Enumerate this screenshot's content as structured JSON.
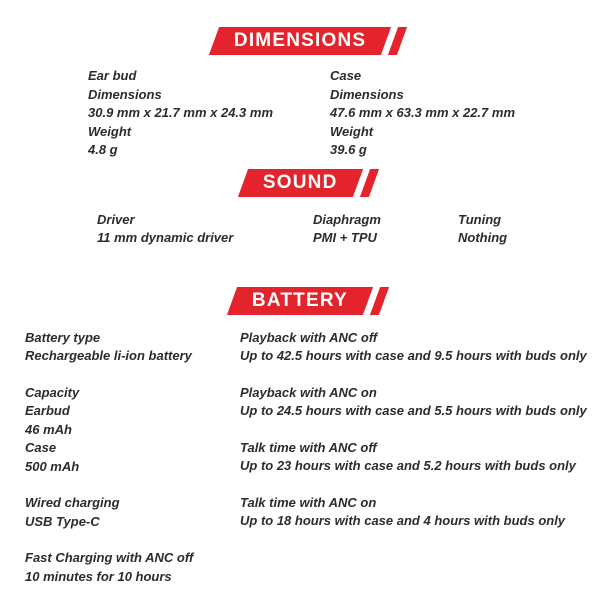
{
  "theme": {
    "accent_red": "#e3242c",
    "body_text_color": "#2d2c2b",
    "banner_text_color": "#ffffff",
    "background": "#ffffff"
  },
  "dimensions": {
    "title": "DIMENSIONS",
    "earbud": {
      "lines": [
        "Ear bud",
        "Dimensions",
        "30.9 mm x 21.7 mm x 24.3 mm",
        "Weight",
        "4.8 g"
      ]
    },
    "case": {
      "lines": [
        "Case",
        "Dimensions",
        "47.6 mm x 63.3 mm x 22.7 mm",
        "Weight",
        "39.6 g"
      ]
    }
  },
  "sound": {
    "title": "SOUND",
    "specs": [
      {
        "label": "Driver",
        "value": "11 mm dynamic driver"
      },
      {
        "label": "Diaphragm",
        "value": "PMI + TPU"
      },
      {
        "label": "Tuning",
        "value": "Nothing"
      }
    ]
  },
  "battery": {
    "title": "BATTERY",
    "left": [
      {
        "lines": [
          "Battery type",
          "Rechargeable li-ion battery"
        ]
      },
      {
        "lines": [
          "Capacity",
          "Earbud",
          "46 mAh",
          "Case",
          "500 mAh"
        ]
      },
      {
        "lines": [
          "Wired charging",
          "USB Type-C"
        ]
      },
      {
        "lines": [
          "Fast Charging with ANC off",
          "10 minutes for 10 hours"
        ]
      }
    ],
    "right": [
      {
        "label": "Playback with ANC off",
        "value": "Up to 42.5 hours with case and 9.5 hours with buds only"
      },
      {
        "label": "Playback with ANC on",
        "value": "Up to 24.5 hours with case and 5.5 hours with buds only"
      },
      {
        "label": "Talk time with ANC off",
        "value": "Up to 23 hours with case and 5.2 hours with buds only"
      },
      {
        "label": "Talk time with ANC on",
        "value": "Up to 18 hours with case and 4 hours with buds only"
      }
    ]
  }
}
